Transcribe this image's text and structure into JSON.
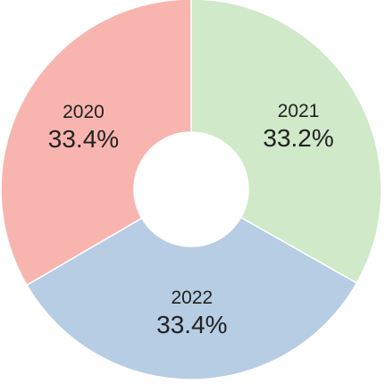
{
  "chart_data": {
    "type": "pie",
    "donut": true,
    "start_angle_deg": 0,
    "direction": "clockwise",
    "slices": [
      {
        "label": "2021",
        "value": 33.2,
        "display": "33.2%",
        "color": "#cfe9c9"
      },
      {
        "label": "2022",
        "value": 33.4,
        "display": "33.4%",
        "color": "#b6cde3"
      },
      {
        "label": "2020",
        "value": 33.4,
        "display": "33.4%",
        "color": "#f8b5b0"
      }
    ],
    "title": "",
    "legend": "none"
  }
}
